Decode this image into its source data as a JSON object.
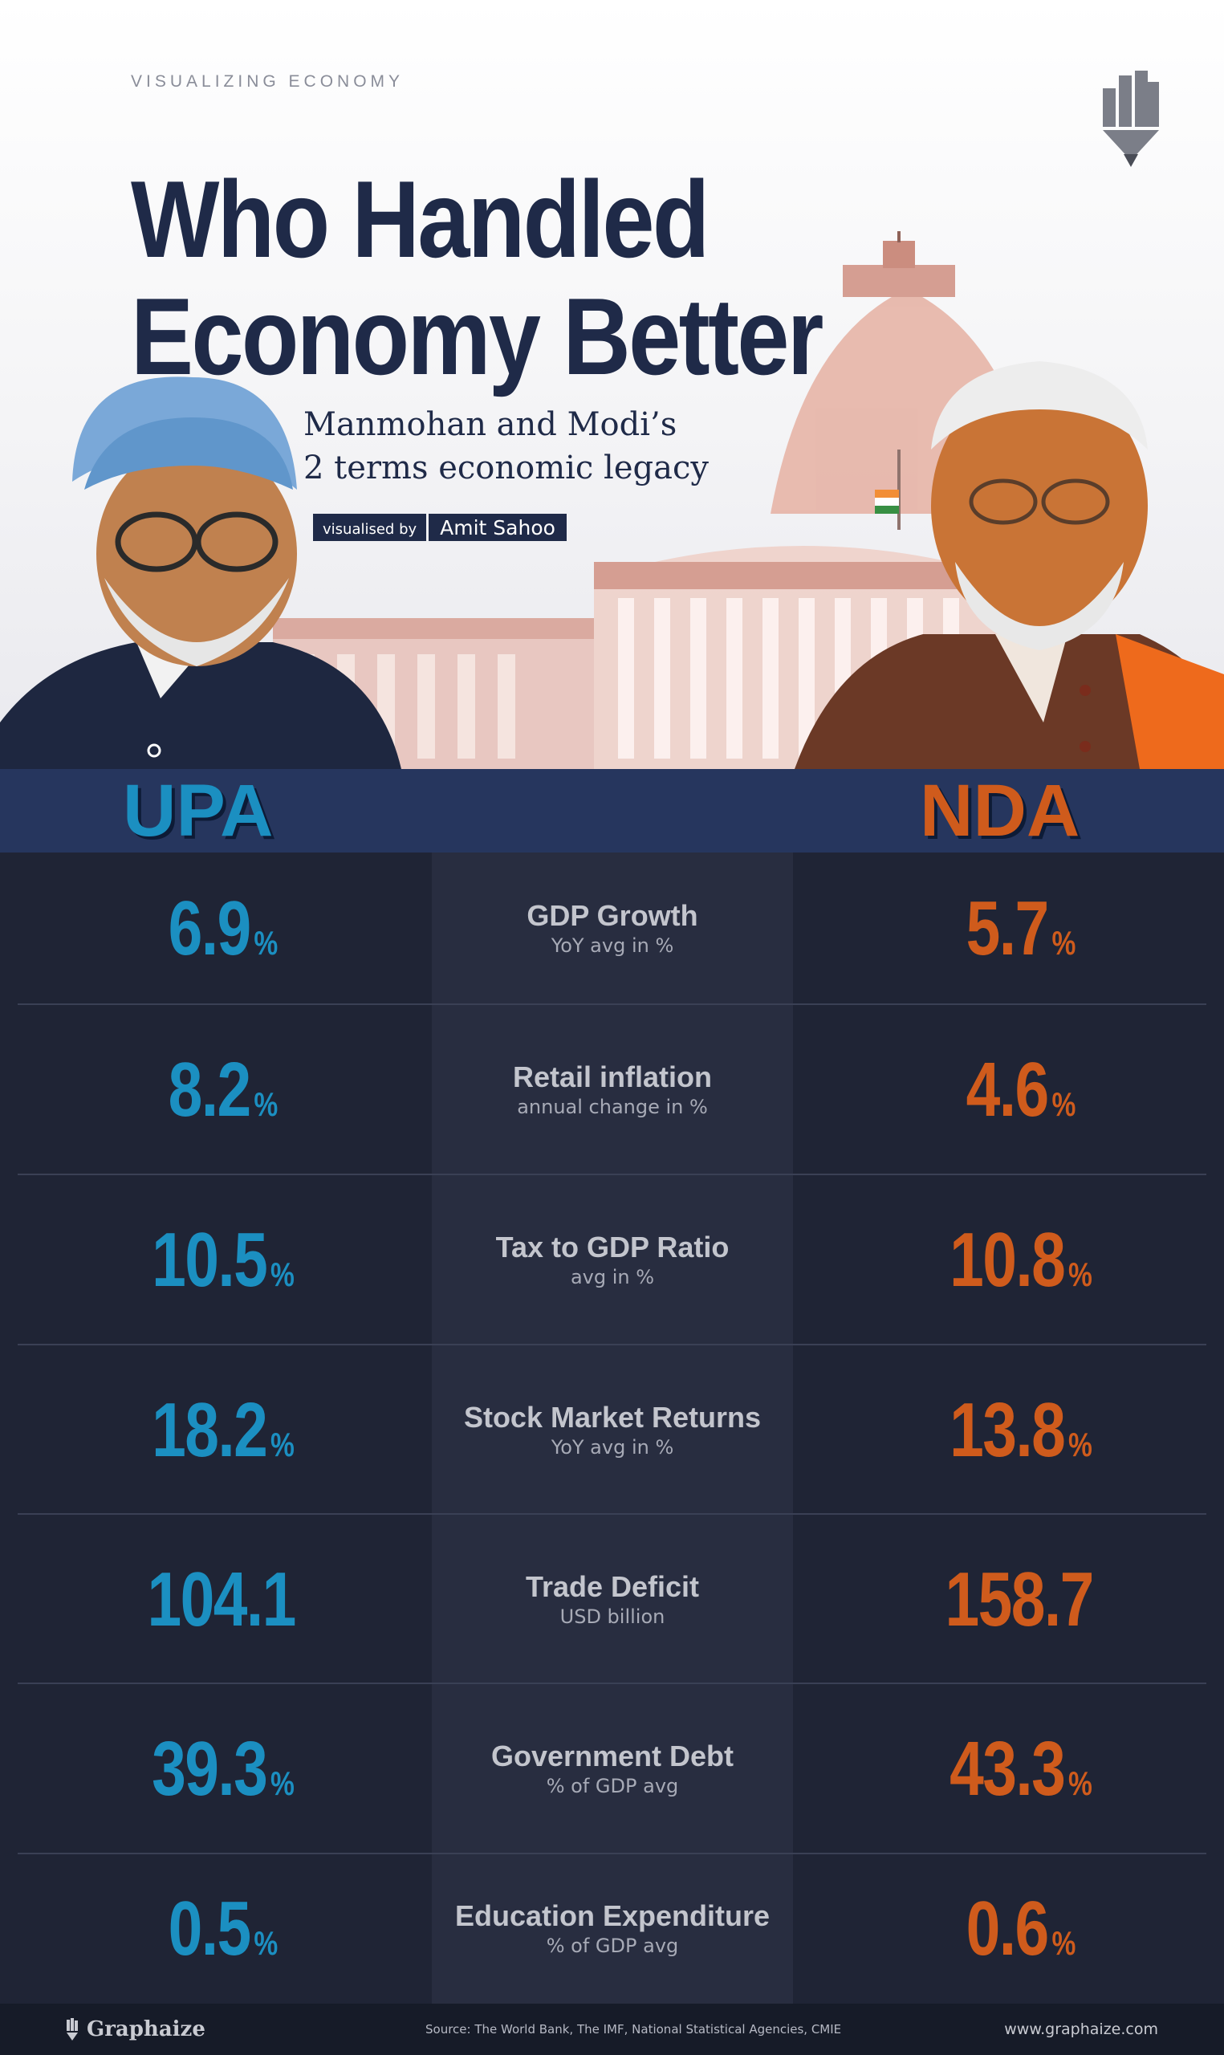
{
  "header": {
    "eyebrow": "VISUALIZING ECONOMY",
    "title_line1": "Who Handled",
    "title_line2": "Economy Better",
    "subtitle_line1": "Manmohan and Modi’s",
    "subtitle_line2": "2 terms economic legacy",
    "credit_label": "visualised by",
    "credit_name": "Amit Sahoo"
  },
  "sides": {
    "left": "UPA",
    "right": "NDA"
  },
  "rows": [
    {
      "metric": "GDP Growth",
      "sub": "YoY avg in %",
      "upa": "6.9",
      "upa_unit": "%",
      "nda": "5.7",
      "nda_unit": "%"
    },
    {
      "metric": "Retail inflation",
      "sub": "annual change in %",
      "upa": "8.2",
      "upa_unit": "%",
      "nda": "4.6",
      "nda_unit": "%"
    },
    {
      "metric": "Tax to GDP Ratio",
      "sub": "avg in %",
      "upa": "10.5",
      "upa_unit": "%",
      "nda": "10.8",
      "nda_unit": "%"
    },
    {
      "metric": "Stock Market Returns",
      "sub": "YoY avg in %",
      "upa": "18.2",
      "upa_unit": "%",
      "nda": "13.8",
      "nda_unit": "%"
    },
    {
      "metric": "Trade Deficit",
      "sub": "USD billion",
      "upa": "104.1",
      "upa_unit": "",
      "nda": "158.7",
      "nda_unit": ""
    },
    {
      "metric": "Government Debt",
      "sub": "% of GDP avg",
      "upa": "39.3",
      "upa_unit": "%",
      "nda": "43.3",
      "nda_unit": "%"
    },
    {
      "metric": "Education Expenditure",
      "sub": "% of GDP avg",
      "upa": "0.5",
      "upa_unit": "%",
      "nda": "0.6",
      "nda_unit": "%"
    }
  ],
  "footer": {
    "brand": "Graphaize",
    "source": "Source: The World Bank, The IMF, National Statistical Agencies, CMIE",
    "url": "www.graphaize.com"
  },
  "colors": {
    "upa": "#1b8fc1",
    "nda": "#cf5b1c",
    "navy": "#1f2a48",
    "bar": "#26365e",
    "table_bg": "#1f2435"
  },
  "icons": {
    "brand_logo": "pencil-bars-icon",
    "footer_logo": "pencil-icon"
  }
}
